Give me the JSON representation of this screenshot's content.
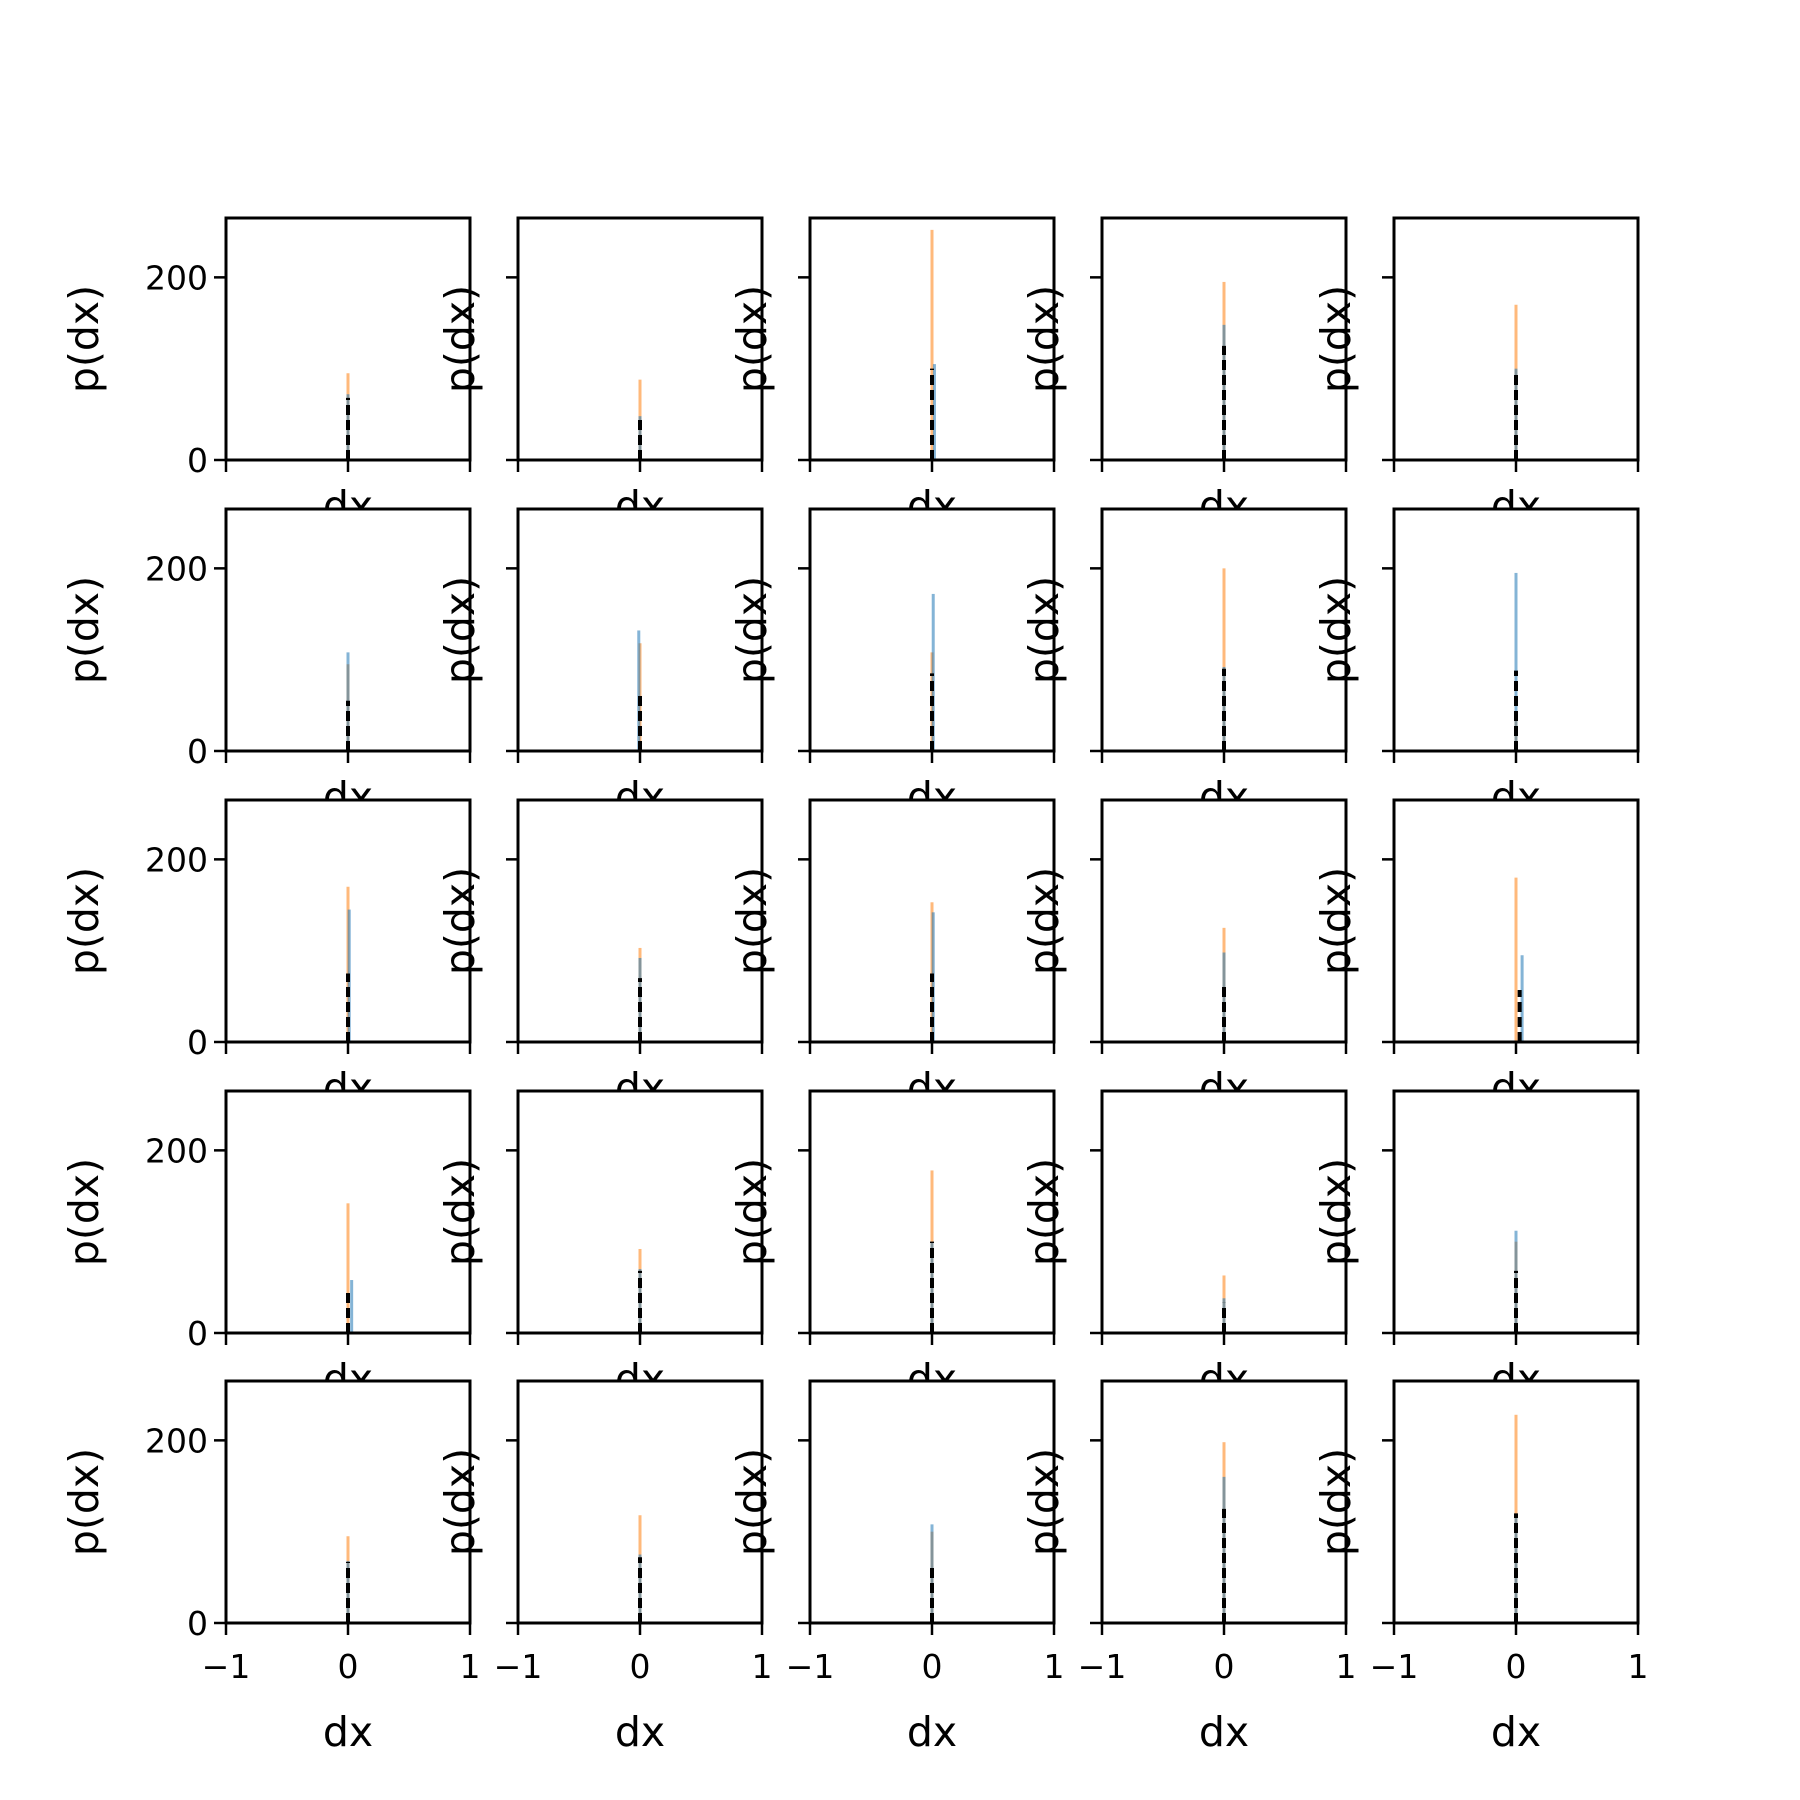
{
  "chart_data": {
    "type": "histogram-grid",
    "rows": 5,
    "cols": 5,
    "xlabel": "dx",
    "ylabel": "p(dx)",
    "xlim": [
      -1,
      1
    ],
    "ylim": [
      0,
      265
    ],
    "xticks": [
      -1,
      0,
      1
    ],
    "xtick_labels": [
      "−1",
      "0",
      "1"
    ],
    "yticks": [
      0,
      200
    ],
    "ytick_labels": [
      "0",
      "200"
    ],
    "colors": {
      "series_a": "#1f77b4",
      "series_b": "#ff7f0e",
      "reference": "#000000",
      "axes": "#000000"
    },
    "panels": [
      {
        "orange": 95,
        "blue": 72,
        "ref": 68,
        "blue_offset": 0.0,
        "ref_offset": 0.0
      },
      {
        "orange": 88,
        "blue": 48,
        "ref": 45,
        "blue_offset": 0.0,
        "ref_offset": 0.0
      },
      {
        "orange": 252,
        "blue": 105,
        "ref": 100,
        "blue_offset": 0.02,
        "ref_offset": 0.0
      },
      {
        "orange": 195,
        "blue": 148,
        "ref": 125,
        "blue_offset": 0.0,
        "ref_offset": 0.0
      },
      {
        "orange": 170,
        "blue": 100,
        "ref": 95,
        "blue_offset": 0.0,
        "ref_offset": 0.0
      },
      {
        "orange": 95,
        "blue": 108,
        "ref": 55,
        "blue_offset": 0.0,
        "ref_offset": 0.0
      },
      {
        "orange": 118,
        "blue": 132,
        "ref": 65,
        "blue_offset": -0.01,
        "ref_offset": 0.0
      },
      {
        "orange": 108,
        "blue": 172,
        "ref": 85,
        "blue_offset": 0.01,
        "ref_offset": 0.0
      },
      {
        "orange": 200,
        "blue": 92,
        "ref": 90,
        "blue_offset": 0.0,
        "ref_offset": 0.0
      },
      {
        "orange": 40,
        "blue": 195,
        "ref": 88,
        "blue_offset": 0.0,
        "ref_offset": 0.0
      },
      {
        "orange": 170,
        "blue": 145,
        "ref": 75,
        "blue_offset": 0.01,
        "ref_offset": 0.0
      },
      {
        "orange": 103,
        "blue": 92,
        "ref": 70,
        "blue_offset": 0.0,
        "ref_offset": 0.0
      },
      {
        "orange": 153,
        "blue": 142,
        "ref": 75,
        "blue_offset": 0.01,
        "ref_offset": 0.0
      },
      {
        "orange": 125,
        "blue": 98,
        "ref": 65,
        "blue_offset": 0.0,
        "ref_offset": 0.0
      },
      {
        "orange": 180,
        "blue": 95,
        "ref": 57,
        "blue_offset": 0.05,
        "ref_offset": 0.03
      },
      {
        "orange": 142,
        "blue": 58,
        "ref": 48,
        "blue_offset": 0.03,
        "ref_offset": 0.0
      },
      {
        "orange": 92,
        "blue": 70,
        "ref": 68,
        "blue_offset": 0.0,
        "ref_offset": 0.0
      },
      {
        "orange": 178,
        "blue": 100,
        "ref": 100,
        "blue_offset": 0.0,
        "ref_offset": 0.0
      },
      {
        "orange": 63,
        "blue": 38,
        "ref": 33,
        "blue_offset": 0.0,
        "ref_offset": 0.0
      },
      {
        "orange": 100,
        "blue": 112,
        "ref": 68,
        "blue_offset": 0.0,
        "ref_offset": 0.0
      },
      {
        "orange": 95,
        "blue": 68,
        "ref": 67,
        "blue_offset": 0.0,
        "ref_offset": 0.0
      },
      {
        "orange": 118,
        "blue": 75,
        "ref": 72,
        "blue_offset": 0.0,
        "ref_offset": 0.0
      },
      {
        "orange": 100,
        "blue": 108,
        "ref": 65,
        "blue_offset": 0.0,
        "ref_offset": 0.0
      },
      {
        "orange": 198,
        "blue": 160,
        "ref": 125,
        "blue_offset": 0.0,
        "ref_offset": 0.0
      },
      {
        "orange": 228,
        "blue": 120,
        "ref": 120,
        "blue_offset": 0.0,
        "ref_offset": 0.0
      }
    ]
  }
}
